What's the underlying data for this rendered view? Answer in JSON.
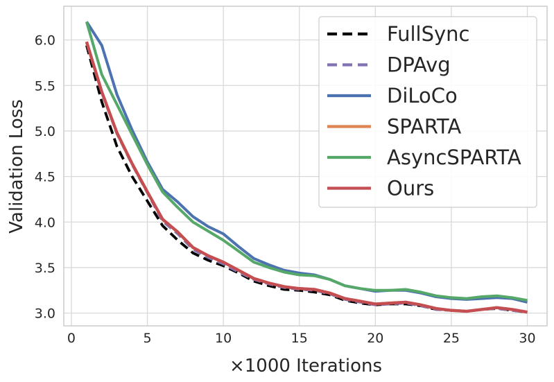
{
  "chart_data": {
    "type": "line",
    "title": "",
    "xlabel": "×1000 Iterations",
    "ylabel": "Validation Loss",
    "xlim": [
      -0.5,
      31.3
    ],
    "ylim": [
      2.86,
      6.37
    ],
    "xticks": [
      0,
      5,
      10,
      15,
      20,
      25,
      30
    ],
    "yticks": [
      3.0,
      3.5,
      4.0,
      4.5,
      5.0,
      5.5,
      6.0
    ],
    "xtick_labels": [
      "0",
      "5",
      "10",
      "15",
      "20",
      "25",
      "30"
    ],
    "ytick_labels": [
      "3.0",
      "3.5",
      "4.0",
      "4.5",
      "5.0",
      "5.5",
      "6.0"
    ],
    "grid": true,
    "legend_position": "top-right",
    "x": [
      1,
      2,
      3,
      4,
      5,
      6,
      7,
      8,
      9,
      10,
      11,
      12,
      13,
      14,
      15,
      16,
      17,
      18,
      19,
      20,
      21,
      22,
      23,
      24,
      25,
      26,
      27,
      28,
      29,
      30
    ],
    "series": [
      {
        "name": "FullSync",
        "color": "#000000",
        "dash": "dashed",
        "values": [
          5.94,
          5.32,
          4.83,
          4.5,
          4.23,
          3.96,
          3.8,
          3.66,
          3.58,
          3.52,
          3.44,
          3.35,
          3.3,
          3.26,
          3.25,
          3.23,
          3.2,
          3.14,
          3.11,
          3.09,
          3.1,
          3.1,
          3.08,
          3.04,
          3.03,
          3.02,
          3.04,
          3.05,
          3.03,
          3.01
        ]
      },
      {
        "name": "DPAvg",
        "color": "#8172b3",
        "dash": "dashed",
        "values": [
          5.97,
          5.42,
          4.97,
          4.63,
          4.32,
          4.01,
          3.87,
          3.7,
          3.61,
          3.54,
          3.45,
          3.37,
          3.32,
          3.28,
          3.26,
          3.25,
          3.21,
          3.15,
          3.12,
          3.09,
          3.1,
          3.11,
          3.08,
          3.04,
          3.03,
          3.02,
          3.04,
          3.05,
          3.03,
          3.01
        ]
      },
      {
        "name": "DiLoCo",
        "color": "#4c72b0",
        "dash": "solid",
        "values": [
          6.2,
          5.94,
          5.4,
          5.01,
          4.66,
          4.36,
          4.22,
          4.06,
          3.95,
          3.87,
          3.73,
          3.6,
          3.53,
          3.47,
          3.44,
          3.42,
          3.37,
          3.3,
          3.27,
          3.24,
          3.25,
          3.25,
          3.22,
          3.18,
          3.16,
          3.15,
          3.16,
          3.17,
          3.16,
          3.12
        ]
      },
      {
        "name": "SPARTA",
        "color": "#dd8452",
        "dash": "solid",
        "values": [
          5.98,
          5.43,
          4.98,
          4.64,
          4.33,
          4.03,
          3.89,
          3.72,
          3.63,
          3.56,
          3.47,
          3.38,
          3.33,
          3.29,
          3.27,
          3.26,
          3.22,
          3.16,
          3.13,
          3.1,
          3.11,
          3.12,
          3.09,
          3.05,
          3.03,
          3.02,
          3.04,
          3.06,
          3.04,
          3.01
        ]
      },
      {
        "name": "AsyncSPARTA",
        "color": "#55a868",
        "dash": "solid",
        "values": [
          6.2,
          5.62,
          5.29,
          4.96,
          4.63,
          4.33,
          4.16,
          4.0,
          3.9,
          3.8,
          3.68,
          3.56,
          3.5,
          3.45,
          3.42,
          3.41,
          3.37,
          3.3,
          3.27,
          3.25,
          3.25,
          3.26,
          3.23,
          3.19,
          3.17,
          3.16,
          3.18,
          3.19,
          3.17,
          3.14
        ]
      },
      {
        "name": "Ours",
        "color": "#c44e52",
        "dash": "solid",
        "values": [
          5.98,
          5.43,
          4.98,
          4.64,
          4.33,
          4.03,
          3.89,
          3.72,
          3.63,
          3.56,
          3.47,
          3.38,
          3.33,
          3.29,
          3.27,
          3.26,
          3.22,
          3.16,
          3.13,
          3.1,
          3.11,
          3.12,
          3.09,
          3.05,
          3.03,
          3.02,
          3.04,
          3.06,
          3.04,
          3.01
        ]
      }
    ]
  }
}
